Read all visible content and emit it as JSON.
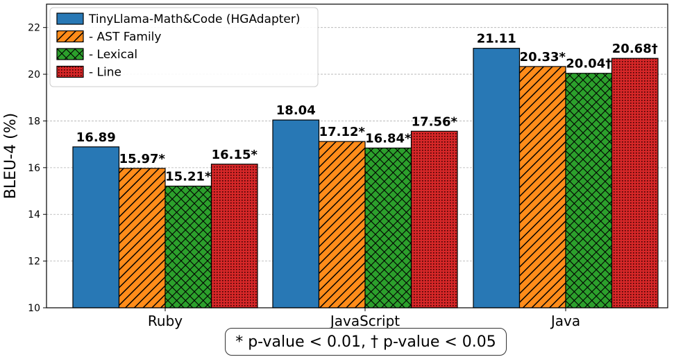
{
  "chart_data": {
    "type": "bar",
    "ylabel": "BLEU-4 (%)",
    "xlabel": "",
    "ylim": [
      10,
      23
    ],
    "yticks": [
      10,
      12,
      14,
      16,
      18,
      20,
      22
    ],
    "grid": "y",
    "legend_position": "top-left",
    "categories": [
      "Ruby",
      "JavaScript",
      "Java"
    ],
    "series": [
      {
        "name": "TinyLlama-Math&Code (HGAdapter)",
        "values": [
          16.89,
          18.04,
          21.11
        ],
        "labels": [
          "16.89",
          "18.04",
          "21.11"
        ],
        "color": "#2878b5",
        "pattern": "solid"
      },
      {
        "name": "- AST Family",
        "values": [
          15.97,
          17.12,
          20.33
        ],
        "labels": [
          "15.97*",
          "17.12*",
          "20.33*"
        ],
        "color": "#ff8c1a",
        "pattern": "diagonal"
      },
      {
        "name": "- Lexical",
        "values": [
          15.21,
          16.84,
          20.04
        ],
        "labels": [
          "15.21*",
          "16.84*",
          "20.04†"
        ],
        "color": "#2ca02c",
        "pattern": "crosshatch"
      },
      {
        "name": "- Line",
        "values": [
          16.15,
          17.56,
          20.68
        ],
        "labels": [
          "16.15*",
          "17.56*",
          "20.68†"
        ],
        "color": "#d62728",
        "pattern": "dots"
      }
    ],
    "footnote": "* p-value < 0.01, † p-value < 0.05"
  }
}
